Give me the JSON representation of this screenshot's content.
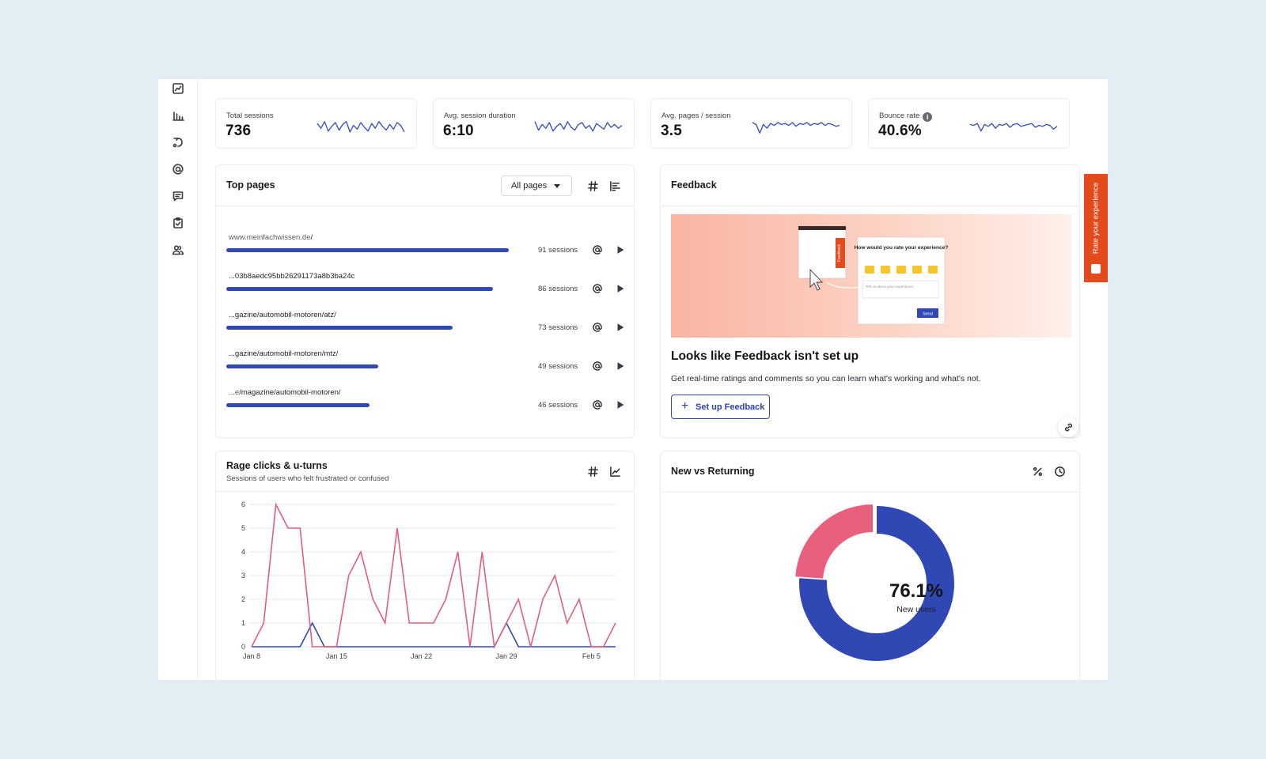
{
  "colors": {
    "accent": "#2f48b4",
    "returning": "#e8607e",
    "rage_line": "#e0607e",
    "uturn_line": "#2f48b4",
    "feedback_tab": "#e34a1c"
  },
  "sidebar": {
    "items": [
      {
        "icon": "trend-icon"
      },
      {
        "icon": "bar-chart-icon"
      },
      {
        "icon": "journey-icon"
      },
      {
        "icon": "at-sign-icon"
      },
      {
        "icon": "message-icon"
      },
      {
        "icon": "clipboard-check-icon"
      },
      {
        "icon": "users-icon"
      }
    ]
  },
  "kpis": [
    {
      "label": "Total sessions",
      "value": "736",
      "spark": [
        14,
        9,
        16,
        6,
        11,
        15,
        7,
        13,
        16,
        5,
        12,
        8,
        15,
        10,
        6,
        14,
        9,
        16,
        11,
        7,
        13,
        8,
        15,
        12,
        5
      ]
    },
    {
      "label": "Avg. session duration",
      "value": "6:10",
      "spark": [
        16,
        7,
        13,
        9,
        15,
        6,
        11,
        14,
        8,
        16,
        10,
        7,
        13,
        15,
        9,
        12,
        6,
        14,
        11,
        8,
        15,
        10,
        13,
        9,
        12
      ]
    },
    {
      "label": "Avg. pages / session",
      "value": "3.5",
      "spark": [
        15,
        13,
        4,
        13,
        9,
        14,
        12,
        15,
        13,
        14,
        12,
        15,
        11,
        14,
        13,
        15,
        12,
        14,
        13,
        15,
        12,
        14,
        13,
        11,
        12
      ]
    },
    {
      "label": "Bounce rate",
      "value": "40.6%",
      "info": "i",
      "spark": [
        13,
        12,
        14,
        6,
        13,
        11,
        14,
        9,
        13,
        12,
        14,
        10,
        13,
        14,
        11,
        12,
        13,
        14,
        10,
        12,
        11,
        13,
        12,
        8,
        11
      ]
    }
  ],
  "top_pages": {
    "title": "Top pages",
    "filter": "All pages",
    "rows": [
      {
        "prefix": "www.meinfachwissen.de",
        "path": "/",
        "sessions": 91,
        "sessions_label": "91 sessions"
      },
      {
        "prefix": "",
        "path": "...03b8aedc95bb26291173a8b3ba24c",
        "sessions": 86,
        "sessions_label": "86 sessions"
      },
      {
        "prefix": "",
        "path": "...gazine/automobil-motoren/atz/",
        "sessions": 73,
        "sessions_label": "73 sessions"
      },
      {
        "prefix": "",
        "path": "...gazine/automobil-motoren/mtz/",
        "sessions": 49,
        "sessions_label": "49 sessions"
      },
      {
        "prefix": "...e",
        "path": "/magazine/automobil-motoren/",
        "sessions": 46,
        "sessions_label": "46 sessions"
      }
    ]
  },
  "feedback": {
    "title": "Feedback",
    "illustration": {
      "widget_tab": "Feedback",
      "question": "How would you rate your experience?",
      "input_placeholder": "Tell us about your experience...",
      "send": "Send"
    },
    "heading": "Looks like Feedback isn't set up",
    "description": "Get real-time ratings and comments so you can learn what's working and what's not.",
    "button": "Set up Feedback",
    "rate_tab": "Rate your experience"
  },
  "rage": {
    "title": "Rage clicks & u-turns",
    "subtitle": "Sessions of users who felt frustrated or confused"
  },
  "new_vs_returning": {
    "title": "New vs Returning",
    "center_value": "76.1%",
    "center_label": "New users"
  },
  "chart_data": [
    {
      "type": "line",
      "x_tick_labels": [
        "Jan 8",
        "Jan 15",
        "Jan 22",
        "Jan 29",
        "Feb 5"
      ],
      "ylim": [
        0,
        6
      ],
      "yticks": [
        0,
        1,
        2,
        3,
        4,
        5,
        6
      ],
      "grid": true,
      "series": [
        {
          "values": [
            0,
            1,
            6,
            5,
            5,
            0,
            0,
            0,
            3,
            4,
            2,
            1,
            5,
            1,
            1,
            1,
            2,
            4,
            0,
            4,
            0,
            1,
            2,
            0,
            2,
            3,
            1,
            2,
            0,
            0,
            1
          ]
        },
        {
          "values": [
            0,
            0,
            0,
            0,
            0,
            1,
            0,
            0,
            0,
            0,
            0,
            0,
            0,
            0,
            0,
            0,
            0,
            0,
            0,
            0,
            0,
            1,
            0,
            0,
            0,
            0,
            0,
            0,
            0,
            0,
            0
          ]
        }
      ]
    },
    {
      "type": "pie",
      "donut": true,
      "slices": [
        {
          "label": "New users",
          "value": 76.1
        },
        {
          "value": 23.9
        }
      ]
    }
  ]
}
